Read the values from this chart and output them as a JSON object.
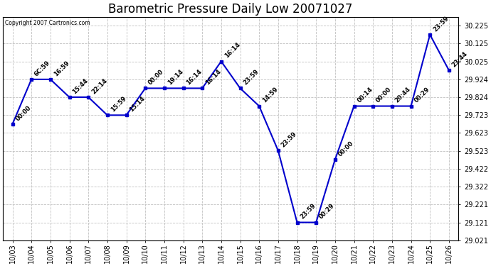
{
  "title": "Barometric Pressure Daily Low 20071027",
  "copyright": "Copyright 2007 Cartronics.com",
  "x_labels": [
    "10/03",
    "10/04",
    "10/05",
    "10/06",
    "10/07",
    "10/08",
    "10/09",
    "10/10",
    "10/11",
    "10/12",
    "10/13",
    "10/14",
    "10/15",
    "10/16",
    "10/17",
    "10/18",
    "10/19",
    "10/20",
    "10/21",
    "10/22",
    "10/23",
    "10/24",
    "10/25",
    "10/26"
  ],
  "x_values": [
    0,
    1,
    2,
    3,
    4,
    5,
    6,
    7,
    8,
    9,
    10,
    11,
    12,
    13,
    14,
    15,
    16,
    17,
    18,
    19,
    20,
    21,
    22,
    23
  ],
  "y_values": [
    29.673,
    29.924,
    29.924,
    29.824,
    29.824,
    29.723,
    29.723,
    29.874,
    29.874,
    29.874,
    29.874,
    30.025,
    29.874,
    29.774,
    29.524,
    29.121,
    29.121,
    29.474,
    29.774,
    29.774,
    29.774,
    29.774,
    30.175,
    29.975
  ],
  "point_labels": [
    "00:00",
    "6C:59",
    "16:59",
    "15:44",
    "22:14",
    "15:59",
    "15:14",
    "00:00",
    "19:14",
    "16:14",
    "16:14",
    "16:14",
    "23:59",
    "14:59",
    "23:59",
    "23:59",
    "00:29",
    "00:00",
    "00:14",
    "00:00",
    "20:44",
    "00:29",
    "23:59",
    "23:44"
  ],
  "line_color": "#0000cc",
  "marker_color": "#0000cc",
  "background_color": "#ffffff",
  "grid_color": "#c0c0c0",
  "ylim_min": 29.021,
  "ylim_max": 30.275,
  "ytick_values": [
    29.021,
    29.121,
    29.221,
    29.322,
    29.422,
    29.523,
    29.623,
    29.723,
    29.824,
    29.924,
    30.025,
    30.125,
    30.225
  ],
  "ytick_labels": [
    "29.021",
    "29.121",
    "29.221",
    "29.322",
    "29.422",
    "29.523",
    "29.623",
    "29.723",
    "29.824",
    "29.924",
    "30.025",
    "30.125",
    "30.225"
  ],
  "title_fontsize": 12,
  "annot_fontsize": 6,
  "tick_fontsize": 7,
  "figwidth": 6.9,
  "figheight": 3.75,
  "dpi": 100
}
